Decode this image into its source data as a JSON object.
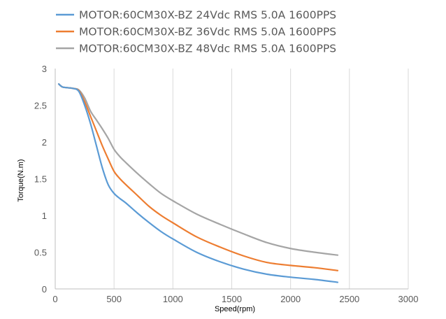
{
  "chart_data": {
    "type": "line",
    "title": "",
    "xlabel": "Speed(rpm)",
    "ylabel": "Torque(N.m)",
    "xlim": [
      0,
      3000
    ],
    "ylim": [
      0,
      3
    ],
    "x_ticks": [
      0,
      500,
      1000,
      1500,
      2000,
      2500,
      3000
    ],
    "y_ticks": [
      0,
      0.5,
      1,
      1.5,
      2,
      2.5,
      3
    ],
    "x_tick_labels": [
      "0",
      "500",
      "1000",
      "1500",
      "2000",
      "2500",
      "3000"
    ],
    "y_tick_labels": [
      "0",
      "0.5",
      "1",
      "1.5",
      "2",
      "2.5",
      "3"
    ],
    "grid": "vertical",
    "legend_position": "top-left",
    "series": [
      {
        "name": "MOTOR:60CM30X-BZ 24Vdc RMS 5.0A 1600PPS",
        "color": "#5b9bd5",
        "x": [
          30,
          60,
          100,
          150,
          200,
          250,
          300,
          350,
          400,
          450,
          500,
          550,
          600,
          700,
          800,
          900,
          1000,
          1200,
          1400,
          1600,
          1800,
          2000,
          2200,
          2400
        ],
        "y": [
          2.79,
          2.75,
          2.74,
          2.73,
          2.69,
          2.5,
          2.25,
          1.95,
          1.65,
          1.42,
          1.3,
          1.23,
          1.17,
          1.03,
          0.9,
          0.78,
          0.68,
          0.5,
          0.37,
          0.27,
          0.2,
          0.16,
          0.13,
          0.09
        ]
      },
      {
        "name": "MOTOR:60CM30X-BZ 36Vdc RMS 5.0A 1600PPS",
        "color": "#ed7d31",
        "x": [
          30,
          60,
          100,
          150,
          200,
          250,
          300,
          350,
          400,
          450,
          500,
          550,
          600,
          700,
          800,
          900,
          1000,
          1200,
          1400,
          1600,
          1800,
          2000,
          2200,
          2400
        ],
        "y": [
          2.79,
          2.75,
          2.74,
          2.73,
          2.7,
          2.55,
          2.35,
          2.15,
          1.95,
          1.77,
          1.6,
          1.5,
          1.42,
          1.27,
          1.12,
          1.0,
          0.9,
          0.71,
          0.57,
          0.45,
          0.36,
          0.32,
          0.29,
          0.25
        ]
      },
      {
        "name": "MOTOR:60CM30X-BZ 48Vdc RMS 5.0A 1600PPS",
        "color": "#a5a5a5",
        "x": [
          30,
          60,
          100,
          150,
          200,
          250,
          300,
          350,
          400,
          450,
          500,
          550,
          600,
          700,
          800,
          900,
          1000,
          1200,
          1400,
          1600,
          1800,
          2000,
          2200,
          2400
        ],
        "y": [
          2.79,
          2.75,
          2.74,
          2.73,
          2.71,
          2.6,
          2.42,
          2.3,
          2.18,
          2.05,
          1.9,
          1.8,
          1.72,
          1.57,
          1.43,
          1.3,
          1.2,
          1.02,
          0.88,
          0.75,
          0.63,
          0.55,
          0.5,
          0.46
        ]
      }
    ]
  }
}
